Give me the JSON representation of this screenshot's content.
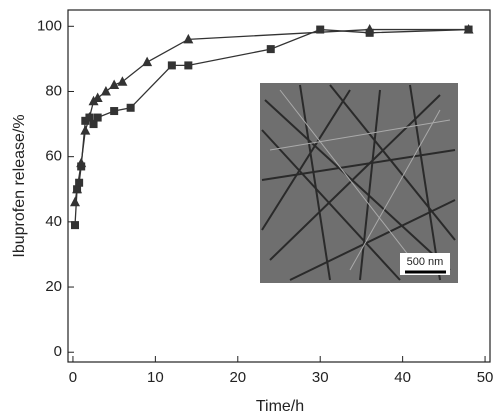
{
  "chart_data": {
    "type": "line",
    "x_label": "Time/h",
    "y_label": "Ibuprofen release/%",
    "inset_label": "500 nm",
    "xlim": [
      -0.6,
      50.6
    ],
    "xticks": [
      0,
      10,
      20,
      30,
      40,
      50
    ],
    "ylim": [
      -3,
      105
    ],
    "yticks": [
      0,
      20,
      40,
      60,
      80,
      100
    ],
    "series": [
      {
        "marker": "square",
        "color": "#333333",
        "x": [
          0.25,
          0.5,
          0.75,
          1,
          1.5,
          2,
          2.5,
          3,
          5,
          7,
          12,
          14,
          24,
          30,
          36,
          48
        ],
        "values": [
          39,
          50,
          52,
          57,
          71,
          72,
          70,
          72,
          74,
          75,
          88,
          88,
          93,
          99,
          98,
          99
        ]
      },
      {
        "marker": "triangle",
        "color": "#333333",
        "x": [
          0.25,
          0.5,
          1,
          1.5,
          2,
          2.5,
          3,
          4,
          5,
          6,
          9,
          14,
          36,
          48
        ],
        "values": [
          46,
          50,
          58,
          68,
          72,
          77,
          78,
          80,
          82,
          83,
          89,
          96,
          99,
          99
        ]
      }
    ]
  }
}
